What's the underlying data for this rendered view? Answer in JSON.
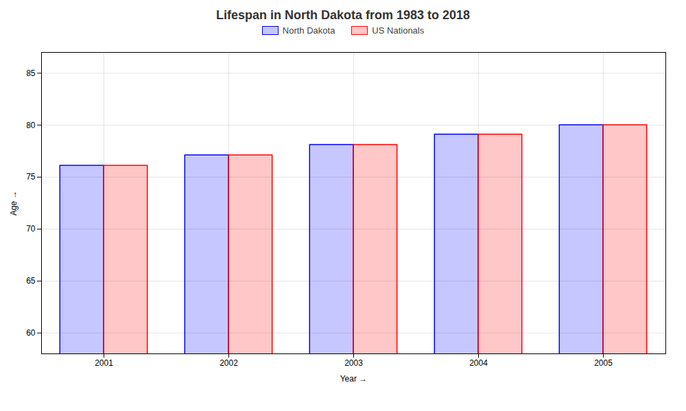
{
  "chart_data": {
    "type": "bar",
    "title": "Lifespan in North Dakota from 1983 to 2018",
    "xlabel": "Year",
    "ylabel": "Age",
    "categories": [
      "2001",
      "2002",
      "2003",
      "2004",
      "2005"
    ],
    "series": [
      {
        "name": "North Dakota",
        "color": "#0000ff",
        "values": [
          76.1,
          77.1,
          78.1,
          79.1,
          80.0
        ]
      },
      {
        "name": "US Nationals",
        "color": "#ff0000",
        "values": [
          76.1,
          77.1,
          78.1,
          79.1,
          80.0
        ]
      }
    ],
    "ylim": [
      58,
      87
    ],
    "yticks": [
      60,
      65,
      70,
      75,
      80,
      85
    ],
    "grid": true,
    "legend": "top"
  }
}
